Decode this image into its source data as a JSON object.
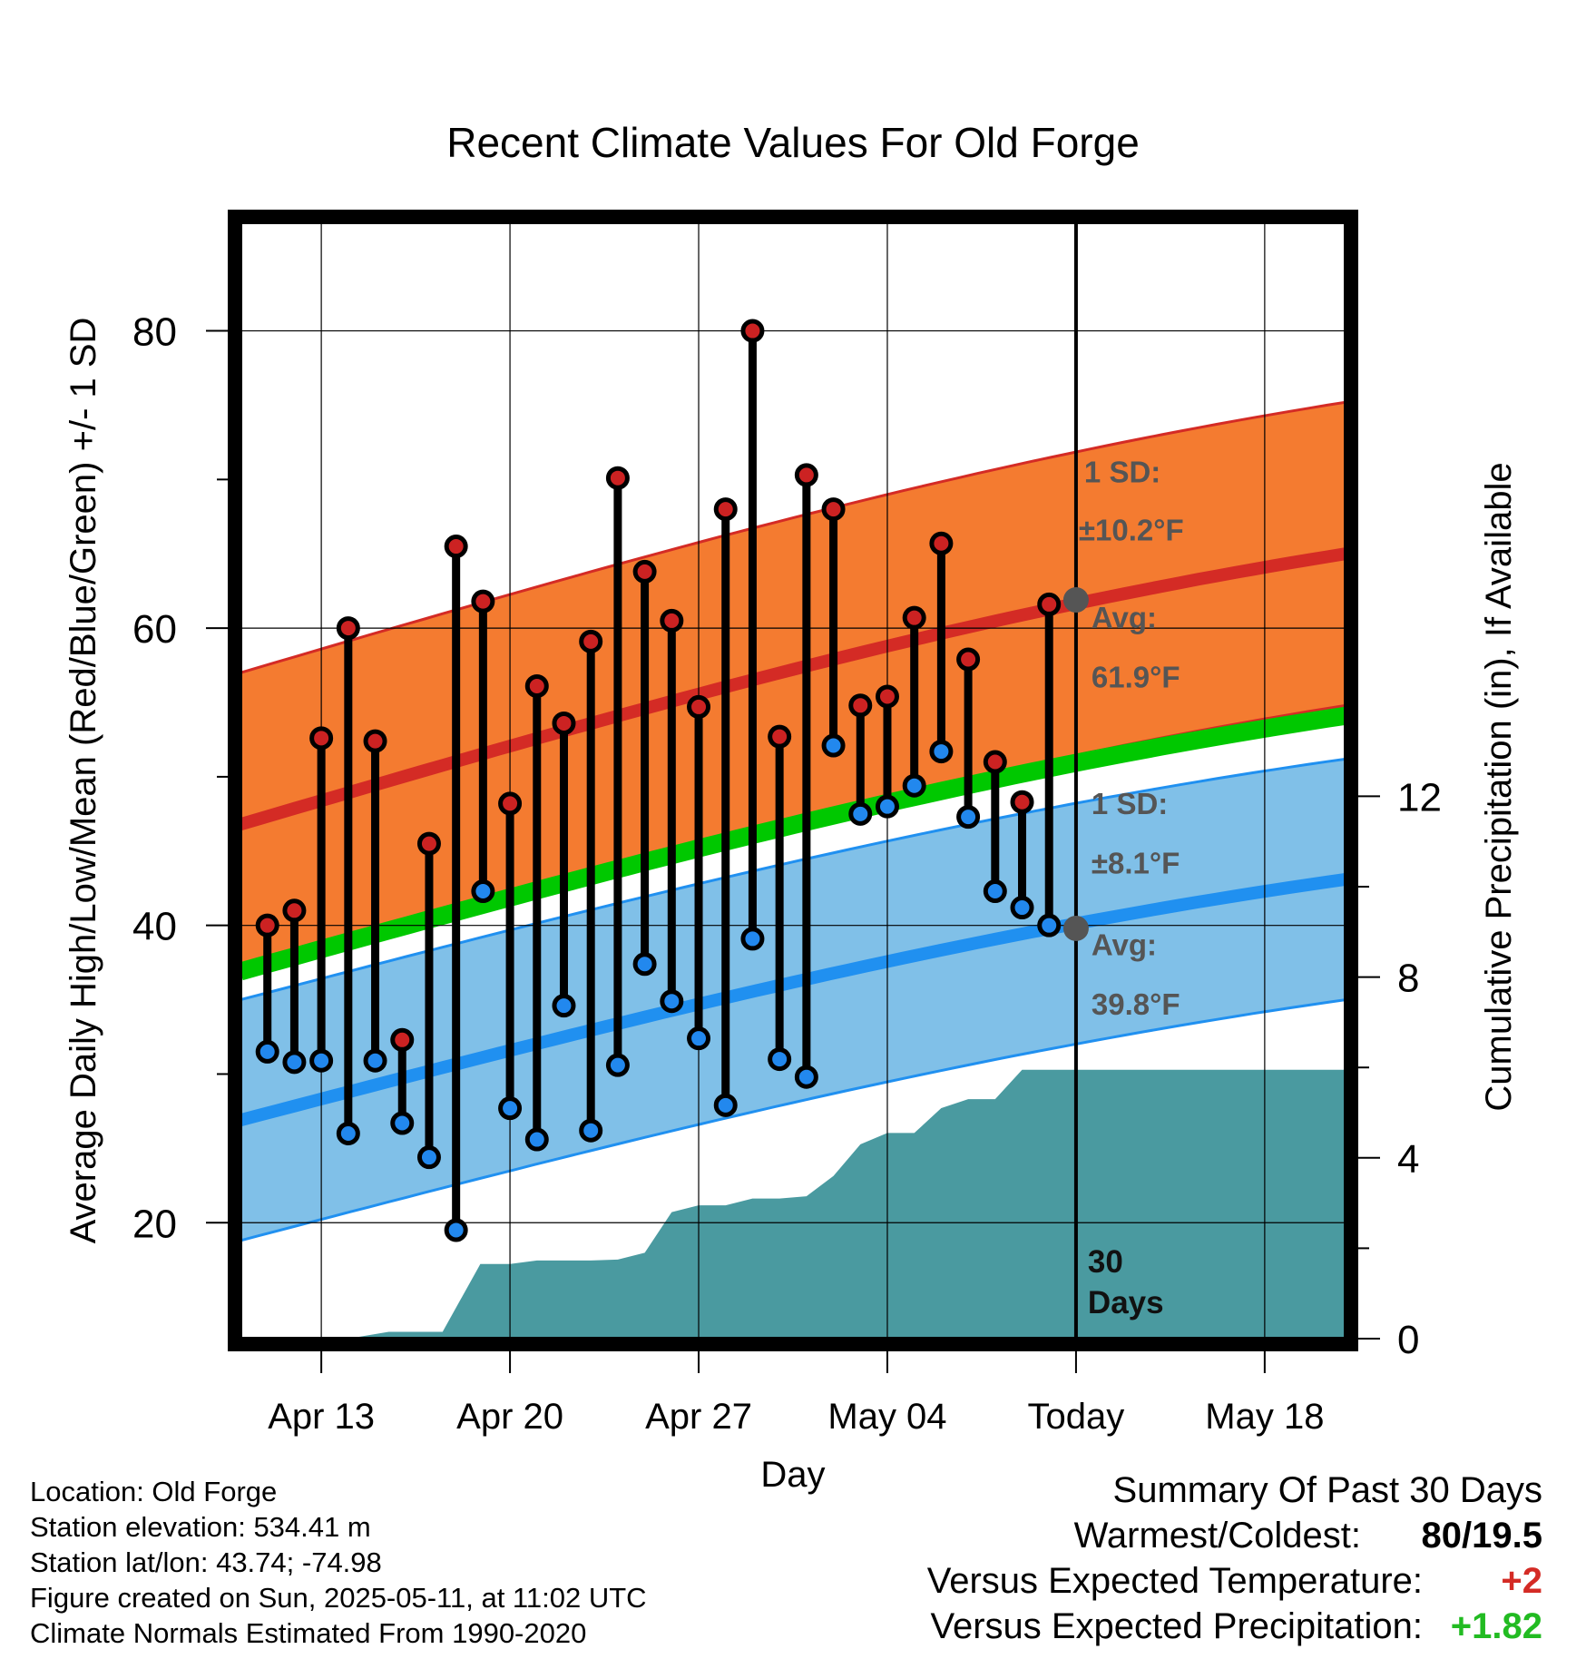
{
  "chart_data": {
    "type": "line",
    "title": "Recent Climate Values For Old Forge",
    "xlabel": "Day",
    "ylabel": "Average Daily High/Low/Mean (Red/Blue/Green) +/- 1 SD",
    "y2label": "Cumulative Precipitation (in), If Available",
    "x_ticks": [
      "Apr 13",
      "Apr 20",
      "Apr 27",
      "May 04",
      "Today",
      "May 18"
    ],
    "y_ticks": [
      20,
      40,
      60,
      80
    ],
    "y2_ticks": [
      0,
      4,
      8,
      12
    ],
    "ylim": [
      12.2,
      87.3
    ],
    "y2lim": [
      0,
      24.7
    ],
    "xlim": [
      "Apr 10",
      "May 21"
    ],
    "grid": true,
    "colors": {
      "high_band": "#f47b30",
      "high_line": "#d42b25",
      "mean_line": "#00c800",
      "low_band": "#80c0e8",
      "low_line": "#2090f0",
      "precip": "#4a9aa0",
      "high_dot": "#cc2222",
      "low_dot": "#2288ee",
      "today_marker": "#555555",
      "annotation": "#555555"
    },
    "dates": [
      "Apr 11",
      "Apr 12",
      "Apr 13",
      "Apr 14",
      "Apr 15",
      "Apr 16",
      "Apr 17",
      "Apr 18",
      "Apr 19",
      "Apr 20",
      "Apr 21",
      "Apr 22",
      "Apr 23",
      "Apr 24",
      "Apr 25",
      "Apr 26",
      "Apr 27",
      "Apr 28",
      "Apr 29",
      "Apr 30",
      "May 01",
      "May 02",
      "May 03",
      "May 04",
      "May 05",
      "May 06",
      "May 07",
      "May 08",
      "May 09",
      "May 10"
    ],
    "daily_high": [
      40,
      41,
      52.6,
      60,
      52.4,
      32.3,
      45.5,
      65.5,
      61.8,
      48.2,
      56.1,
      53.6,
      59.1,
      70.1,
      63.8,
      60.5,
      54.7,
      68.0,
      80,
      52.7,
      70.3,
      68.0,
      54.8,
      55.4,
      60.7,
      65.7,
      57.9,
      51.0,
      48.3,
      61.6
    ],
    "daily_low": [
      31.5,
      30.8,
      30.9,
      26.0,
      30.9,
      26.7,
      24.4,
      19.5,
      42.3,
      27.7,
      25.6,
      34.6,
      26.2,
      30.6,
      37.4,
      34.9,
      32.4,
      27.9,
      39.1,
      31.0,
      29.8,
      52.1,
      47.5,
      48.0,
      49.4,
      51.7,
      47.3,
      42.3,
      41.2,
      40.0
    ],
    "normals": {
      "x": [
        "Apr 10",
        "May 21"
      ],
      "avg_high": [
        46.8,
        65.0
      ],
      "avg_low": [
        26.9,
        43.1
      ],
      "avg_mean": [
        36.9,
        54.1
      ],
      "high_sd": 10.2,
      "low_sd": 8.1
    },
    "precip_cumulative": [
      [
        "Apr 10",
        0
      ],
      [
        "Apr 14",
        0
      ],
      [
        "Apr 15.5",
        0.15
      ],
      [
        "Apr 17.5",
        0.15
      ],
      [
        "Apr 18.9",
        1.65
      ],
      [
        "Apr 20",
        1.65
      ],
      [
        "Apr 21",
        1.73
      ],
      [
        "Apr 23",
        1.73
      ],
      [
        "Apr 24",
        1.75
      ],
      [
        "Apr 25",
        1.9
      ],
      [
        "Apr 26",
        2.8
      ],
      [
        "Apr 27",
        2.95
      ],
      [
        "Apr 28",
        2.95
      ],
      [
        "Apr 29",
        3.1
      ],
      [
        "Apr 30",
        3.1
      ],
      [
        "May 01",
        3.15
      ],
      [
        "May 02",
        3.6
      ],
      [
        "May 03",
        4.3
      ],
      [
        "May 04",
        4.55
      ],
      [
        "May 05",
        4.55
      ],
      [
        "May 06",
        5.1
      ],
      [
        "May 07",
        5.3
      ],
      [
        "May 08",
        5.3
      ],
      [
        "May 09",
        5.95
      ],
      [
        "May 21",
        5.95
      ]
    ],
    "annotations": {
      "high_sd_label": "1 SD:",
      "high_sd_value": "±10.2°F",
      "high_avg_label": "Avg:",
      "high_avg_value": "61.9°F",
      "low_sd_label": "1 SD:",
      "low_sd_value": "±8.1°F",
      "low_avg_label": "Avg:",
      "low_avg_value": "39.8°F",
      "today_avg_high": 61.9,
      "today_avg_low": 39.8,
      "days_line1": "30",
      "days_line2": "Days"
    }
  },
  "info": {
    "location": "Location: Old Forge",
    "elevation": "Station elevation: 534.41 m",
    "latlon": "Station lat/lon: 43.74; -74.98",
    "created": "Figure created on Sun, 2025-05-11, at 11:02 UTC",
    "normals": "Climate Normals Estimated From 1990-2020"
  },
  "summary": {
    "title": "Summary Of Past 30 Days",
    "warmest_coldest_label": "Warmest/Coldest:",
    "warmest_coldest_value": "80/19.5",
    "temp_label": "Versus Expected Temperature:",
    "temp_value": "+2",
    "temp_color": "#d42b25",
    "precip_label": "Versus Expected Precipitation:",
    "precip_value": "+1.82",
    "precip_color": "#22bb22"
  }
}
